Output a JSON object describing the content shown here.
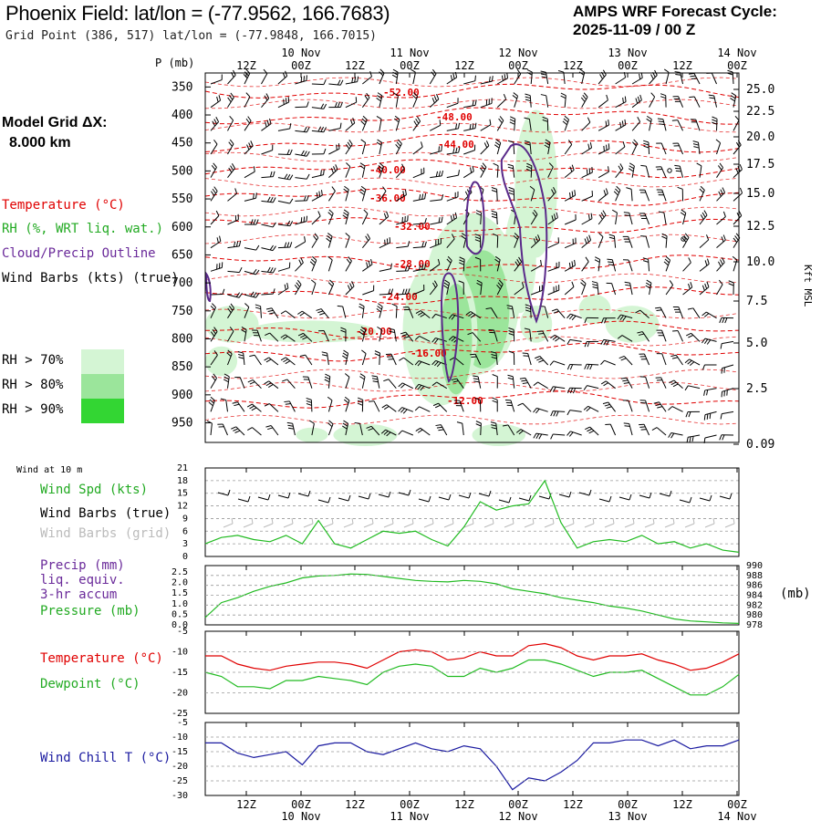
{
  "header": {
    "title": "Phoenix Field:  lat/lon = (-77.9562, 166.7683)",
    "subtitle": "Grid Point (386, 517) lat/lon = (-77.9848, 166.7015)",
    "cycle_line1": "AMPS WRF Forecast Cycle:",
    "cycle_line2": "2025-11-09 / 00  Z"
  },
  "side": {
    "model_grid_label": "Model Grid ΔX:",
    "model_grid_value": "8.000 km",
    "temp_legend": "Temperature (°C)",
    "rh_legend": "RH (%, WRT liq. wat.)",
    "cloud_legend": "Cloud/Precip Outline",
    "wind_legend": "Wind Barbs (kts) (true)",
    "rh_keys": [
      "RH > 70%",
      "RH > 80%",
      "RH > 90%"
    ],
    "wind10m_title": "Wind at 10 m",
    "wind_spd": "Wind Spd (kts)",
    "wind_barbs_true": "Wind Barbs (true)",
    "wind_barbs_grid": "Wind Barbs (grid)",
    "precip_l1": "Precip (mm)",
    "precip_l2": "liq. equiv.",
    "precip_l3": "3-hr accum",
    "pressure": "Pressure (mb)",
    "pressure_unit": "(mb)",
    "temperature": "Temperature (°C)",
    "dewpoint": "Dewpoint (°C)",
    "windchill": "Wind Chill T (°C)"
  },
  "colors": {
    "temp": "#e00000",
    "rh": "#22bb22",
    "cloud": "#5a2a8a",
    "windchill": "#1a1aa0",
    "rh70": "#d4f5d4",
    "rh80": "#9be59b",
    "rh90": "#33d633"
  },
  "chart_data": [
    {
      "type": "time-height cross-section",
      "x_ticks": [
        "12Z",
        "00Z",
        "12Z",
        "00Z",
        "12Z",
        "00Z",
        "12Z",
        "00Z",
        "12Z",
        "00Z"
      ],
      "date_labels": [
        "10 Nov",
        "11 Nov",
        "12 Nov",
        "13 Nov",
        "14 Nov"
      ],
      "p_axis_label": "P (mb)",
      "pressure_levels": [
        350,
        400,
        450,
        500,
        550,
        600,
        650,
        700,
        750,
        800,
        850,
        900,
        950
      ],
      "height_labels": [
        "25.0",
        "22.5",
        "20.0",
        "17.5",
        "15.0",
        "12.5",
        "10.0",
        "7.5",
        "5.0",
        "2.5",
        "0.09"
      ],
      "height_axis_label": "Kft MSL",
      "isotherm_labels": [
        "-52.00",
        "-48.00",
        "-44.00",
        "-40.00",
        "-36.00",
        "-32.00",
        "-28.00",
        "-24.00",
        "-20.00",
        "-16.00",
        "-12.00"
      ]
    },
    {
      "type": "line",
      "name": "wind_speed",
      "hours": [
        0,
        6,
        12,
        18,
        24,
        30,
        36,
        42,
        48,
        54,
        60,
        66,
        72,
        78,
        84,
        90,
        96,
        102,
        108,
        114,
        120,
        126,
        132,
        138,
        144,
        150,
        156,
        162,
        168,
        174,
        180,
        186,
        192,
        198
      ],
      "series": [
        {
          "name": "Wind Spd (kts)",
          "values": [
            3,
            4.5,
            5,
            4,
            3.5,
            5,
            3,
            8.5,
            3,
            2,
            4,
            6,
            5.5,
            6,
            4,
            2.5,
            7,
            13,
            11,
            12,
            12.5,
            18,
            8,
            2,
            3.5,
            4,
            3.5,
            5,
            3,
            3.5,
            2,
            3,
            1.5,
            1
          ]
        }
      ],
      "ylim": [
        0,
        21
      ],
      "yticks": [
        0,
        3,
        6,
        9,
        12,
        15,
        18,
        21
      ]
    },
    {
      "type": "line",
      "name": "pressure",
      "series": [
        {
          "name": "Pressure (mb)",
          "values": [
            979.5,
            982.5,
            983.5,
            984.8,
            985.8,
            986.5,
            987.5,
            987.9,
            988,
            988.3,
            988.2,
            987.8,
            987.4,
            987,
            986.8,
            986.7,
            987,
            986.8,
            986.3,
            985.3,
            984.8,
            984.3,
            983.5,
            983,
            982.5,
            981.8,
            981.4,
            980.8,
            980,
            979.2,
            978.8,
            978.6,
            978.4,
            978.3
          ]
        }
      ],
      "ylim": [
        978,
        990
      ],
      "yticks_right": [
        978,
        980,
        982,
        984,
        986,
        988,
        990
      ],
      "yticks_left": [
        "0.0",
        "0.5",
        "1.0",
        "1.5",
        "2.0",
        "2.5"
      ]
    },
    {
      "type": "line",
      "name": "temperature_dewpoint",
      "series": [
        {
          "name": "Temperature",
          "values": [
            -11,
            -11,
            -13,
            -14,
            -14.5,
            -13.5,
            -13,
            -12.5,
            -12.5,
            -13,
            -14,
            -12,
            -10,
            -9.5,
            -10,
            -12,
            -11.5,
            -10,
            -11,
            -11,
            -8.5,
            -8,
            -9,
            -11,
            -12,
            -11,
            -11,
            -10.5,
            -12,
            -13,
            -14.5,
            -14,
            -12.5,
            -10.5
          ]
        },
        {
          "name": "Dewpoint",
          "values": [
            -15,
            -16,
            -18.5,
            -18.5,
            -19,
            -17,
            -17,
            -16,
            -16.5,
            -17,
            -18,
            -15,
            -13.5,
            -13,
            -13.5,
            -16,
            -16,
            -14,
            -15,
            -14,
            -12,
            -12,
            -13,
            -14.5,
            -16,
            -15,
            -15,
            -14.5,
            -16.5,
            -18.5,
            -20.5,
            -20.5,
            -18.5,
            -15.5
          ]
        }
      ],
      "ylim": [
        -25,
        -5
      ],
      "yticks": [
        -25,
        -20,
        -15,
        -10,
        -5
      ]
    },
    {
      "type": "line",
      "name": "wind_chill",
      "series": [
        {
          "name": "Wind Chill T",
          "values": [
            -12,
            -12,
            -15.5,
            -17,
            -16,
            -15,
            -19.5,
            -13,
            -12,
            -12,
            -15,
            -16,
            -14,
            -12,
            -14,
            -15,
            -13,
            -14,
            -20,
            -28,
            -24,
            -25,
            -22,
            -18,
            -12,
            -12,
            -11,
            -11,
            -13,
            -11,
            -14,
            -13,
            -13,
            -11
          ]
        }
      ],
      "ylim": [
        -30,
        -5
      ],
      "yticks": [
        -30,
        -25,
        -20,
        -15,
        -10,
        -5
      ]
    }
  ]
}
